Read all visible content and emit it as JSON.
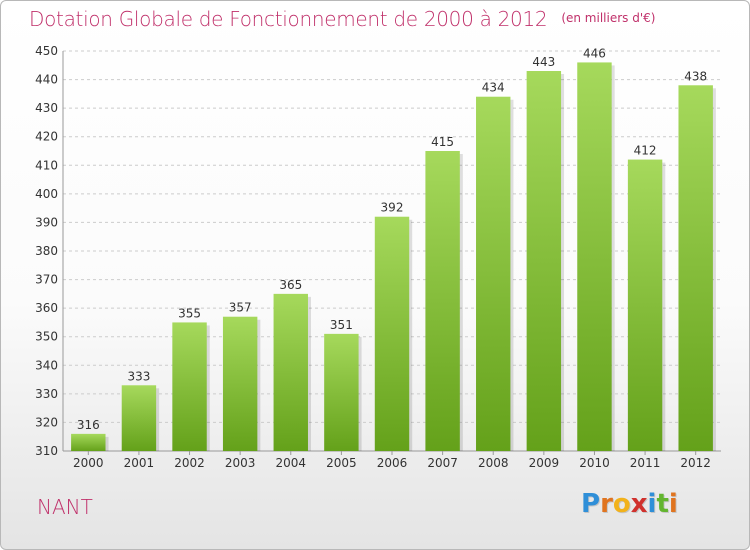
{
  "title": "Dotation Globale de Fonctionnement de 2000 à 2012",
  "unit_note": "(en milliers d'€)",
  "town": "NANT",
  "logo": {
    "text": "Proxiti",
    "letter_colors": [
      "#2f8fd8",
      "#e0741f",
      "#f2b21b",
      "#d0312d",
      "#2f8fd8",
      "#63b52f",
      "#e0741f"
    ]
  },
  "colors": {
    "bar_top": "#a6d95c",
    "bar_bottom": "#64a11a",
    "title": "#c0306a",
    "grid": "#cccccc"
  },
  "chart_data": {
    "type": "bar",
    "categories": [
      "2000",
      "2001",
      "2002",
      "2003",
      "2004",
      "2005",
      "2006",
      "2007",
      "2008",
      "2009",
      "2010",
      "2011",
      "2012"
    ],
    "values": [
      316,
      333,
      355,
      357,
      365,
      351,
      392,
      415,
      434,
      443,
      446,
      412,
      438
    ],
    "value_labels": [
      "316",
      "333",
      "355",
      "357",
      "365",
      "351",
      "392",
      "415",
      "434",
      "443",
      "446",
      "412",
      "438"
    ],
    "title": "Dotation Globale de Fonctionnement de 2000 à 2012",
    "xlabel": "",
    "ylabel": "",
    "ylim": [
      310,
      450
    ],
    "yticks": [
      310,
      320,
      330,
      340,
      350,
      360,
      370,
      380,
      390,
      400,
      410,
      420,
      430,
      440,
      450
    ],
    "grid": true
  }
}
